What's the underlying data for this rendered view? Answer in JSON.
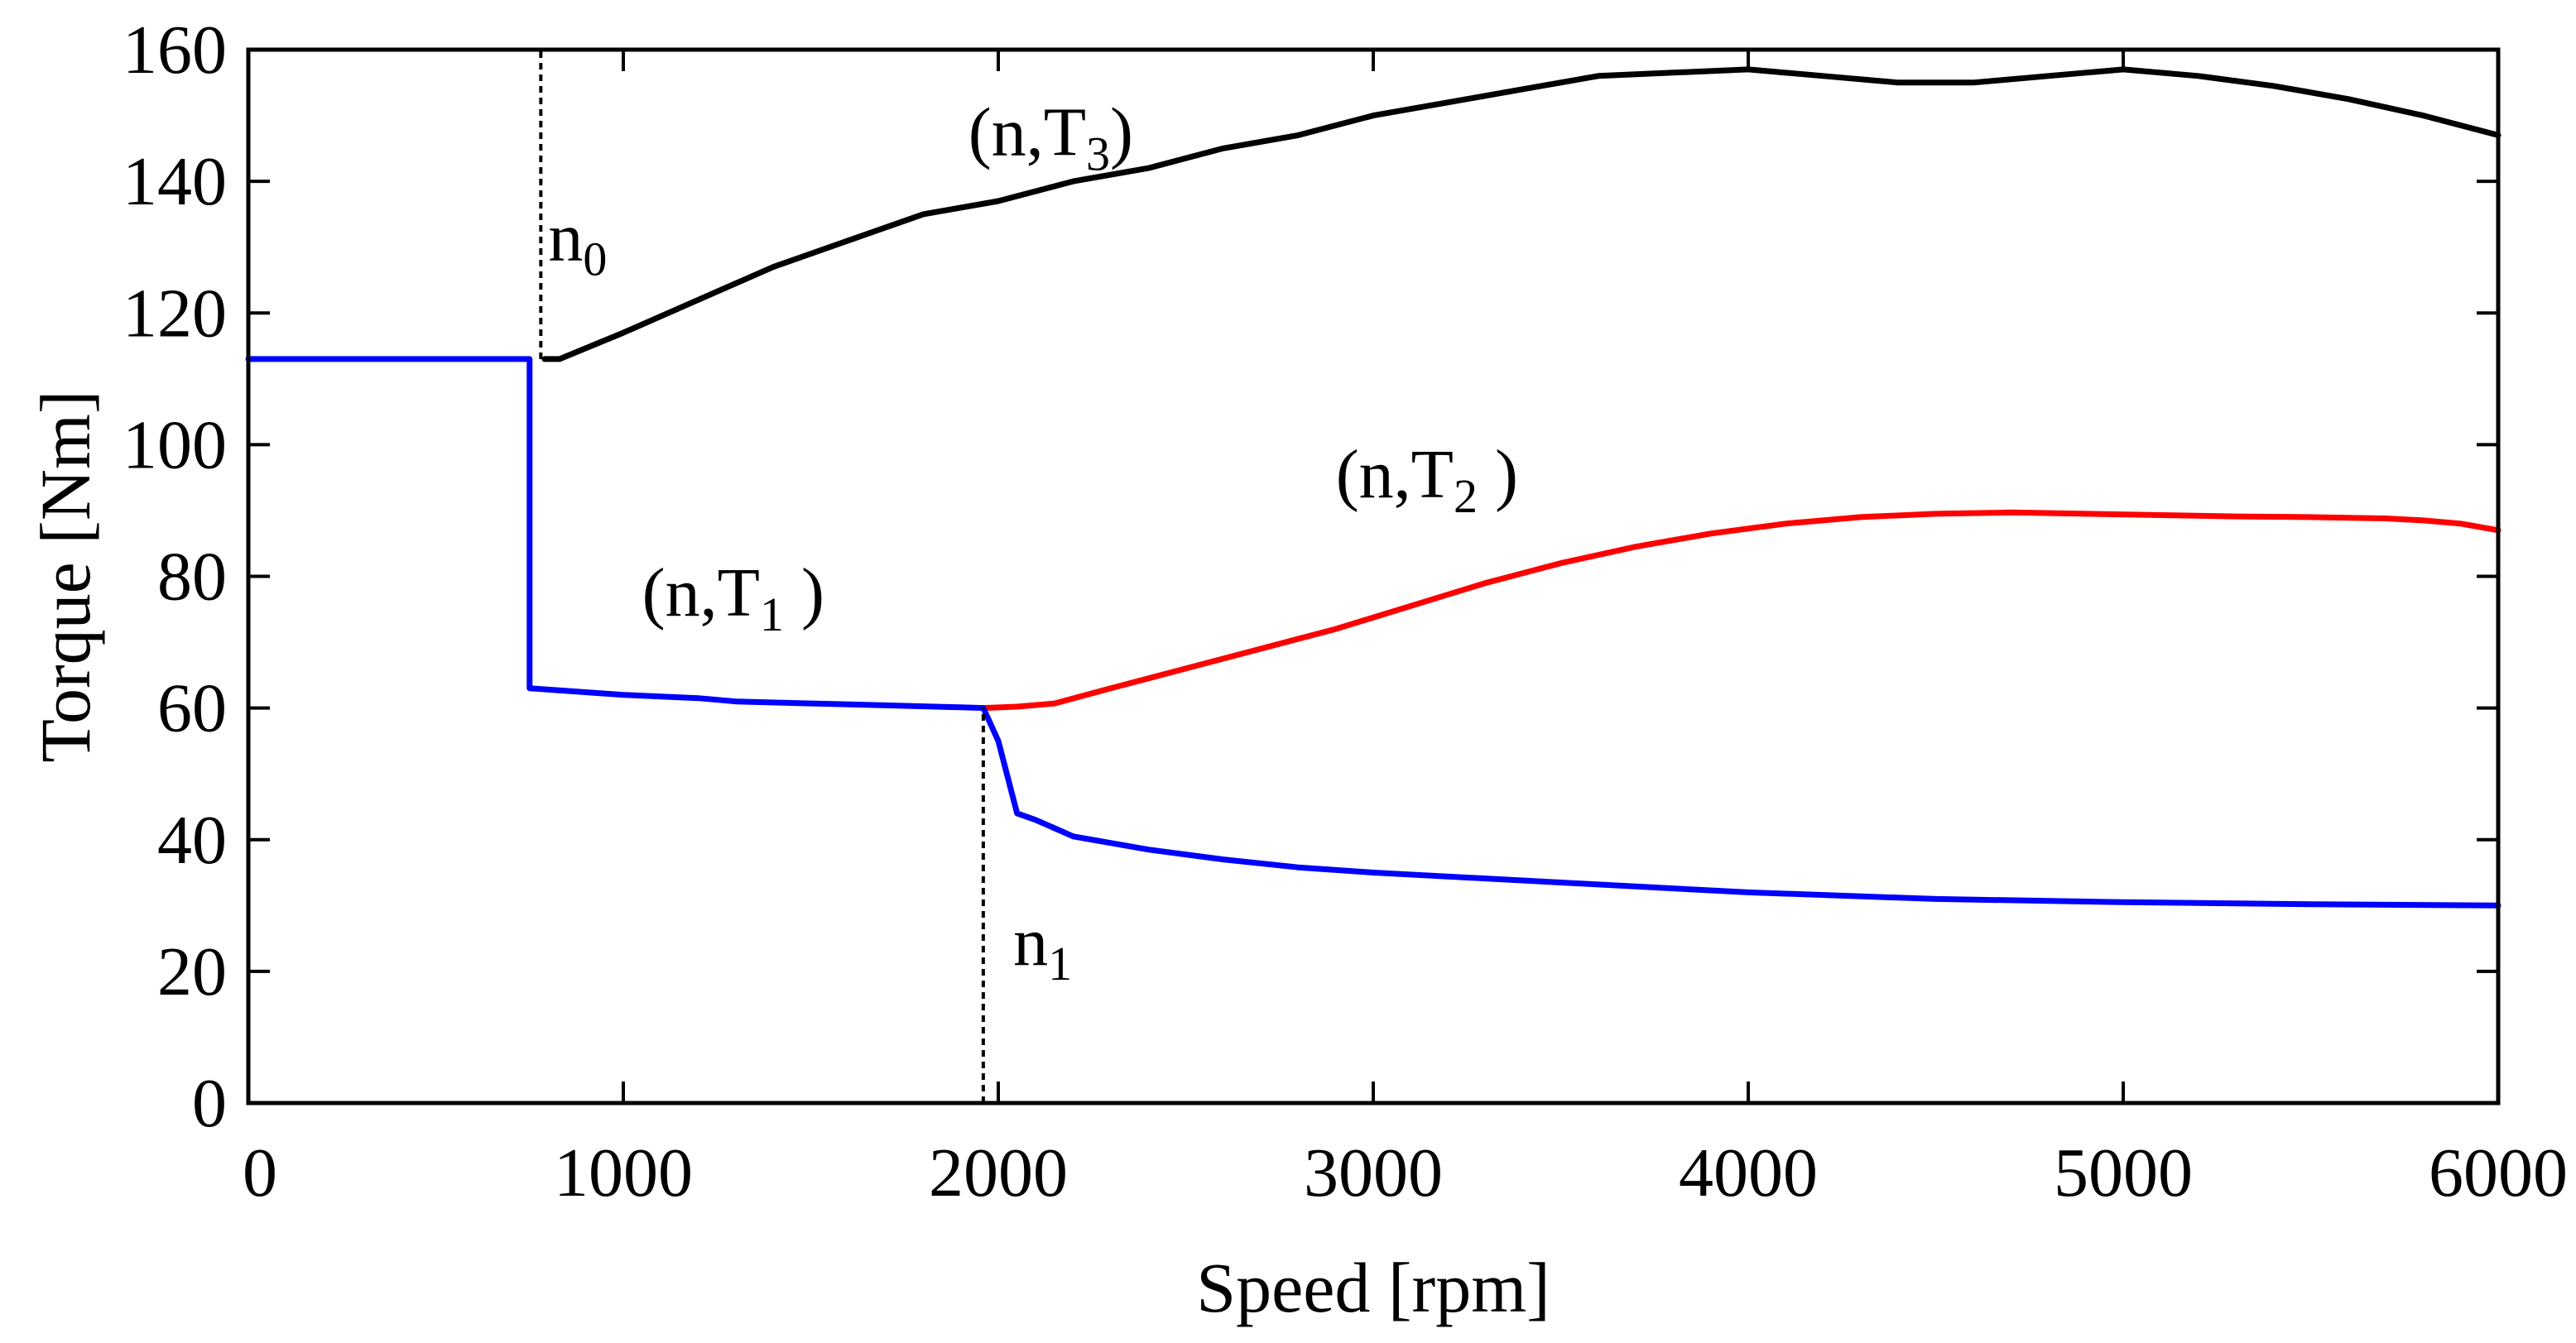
{
  "chart_data": {
    "type": "line",
    "title": "",
    "xlabel": "Speed [rpm]",
    "ylabel": "Torque [Nm]",
    "xlim": [
      0,
      6000
    ],
    "ylim": [
      0,
      160
    ],
    "grid": false,
    "x_ticks": [
      0,
      1000,
      2000,
      3000,
      4000,
      5000,
      6000
    ],
    "y_ticks": [
      0,
      20,
      40,
      60,
      80,
      100,
      120,
      140,
      160
    ],
    "series": [
      {
        "name": "(n,T3)",
        "color": "#000000",
        "x": [
          790,
          830,
          1000,
          1200,
          1400,
          1600,
          1800,
          2000,
          2200,
          2400,
          2600,
          2800,
          3000,
          3200,
          3400,
          3600,
          3800,
          4000,
          4200,
          4400,
          4600,
          4800,
          5000,
          5200,
          5400,
          5600,
          5800,
          6000
        ],
        "y": [
          113,
          113,
          117,
          122,
          127,
          131,
          135,
          137,
          140,
          142,
          145,
          147,
          150,
          152,
          154,
          156,
          156.5,
          157,
          156,
          155,
          155,
          156,
          157,
          156,
          154.5,
          152.5,
          150,
          147
        ]
      },
      {
        "name": "(n,T2)",
        "color": "#ff0000",
        "x": [
          1960,
          2050,
          2150,
          2300,
          2500,
          2700,
          2900,
          3100,
          3300,
          3500,
          3700,
          3900,
          4100,
          4300,
          4500,
          4700,
          4900,
          5100,
          5300,
          5500,
          5700,
          5800,
          5900,
          6000
        ],
        "y": [
          60,
          60.2,
          60.7,
          63,
          66,
          69,
          72,
          75.5,
          79,
          82,
          84.5,
          86.5,
          88,
          89,
          89.5,
          89.7,
          89.5,
          89.3,
          89.1,
          89,
          88.8,
          88.5,
          88,
          87
        ]
      },
      {
        "name": "(n,T1)",
        "color": "#0000ff",
        "x": [
          0,
          750,
          750,
          1000,
          1200,
          1300,
          1500,
          1700,
          1900,
          1960,
          2000,
          2050,
          2100,
          2200,
          2400,
          2600,
          2800,
          3000,
          3500,
          4000,
          4500,
          5000,
          5500,
          6000
        ],
        "y": [
          113,
          113,
          63,
          62,
          61.5,
          61,
          60.7,
          60.4,
          60.1,
          60,
          55,
          44,
          43,
          40.5,
          38.5,
          37,
          35.8,
          35,
          33.5,
          32,
          31,
          30.5,
          30.2,
          30
        ]
      }
    ],
    "markers": [
      {
        "name": "n0",
        "x": 780,
        "y_from": 113,
        "y_to": 160
      },
      {
        "name": "n1",
        "x": 1960,
        "y_from": 0,
        "y_to": 60
      }
    ],
    "annotations": [
      {
        "base": "(n,T",
        "subscript": "3",
        "close": ")",
        "x": 1920,
        "y": 144
      },
      {
        "base": "(n,T",
        "subscript": "2",
        "close": " )",
        "x": 2900,
        "y": 92
      },
      {
        "base": "(n,T",
        "subscript": "1",
        "close": " )",
        "x": 1050,
        "y": 74
      },
      {
        "base": "n",
        "subscript": "0",
        "close": "",
        "x": 800,
        "y": 128
      },
      {
        "base": "n",
        "subscript": "1",
        "close": "",
        "x": 2040,
        "y": 21
      }
    ]
  }
}
